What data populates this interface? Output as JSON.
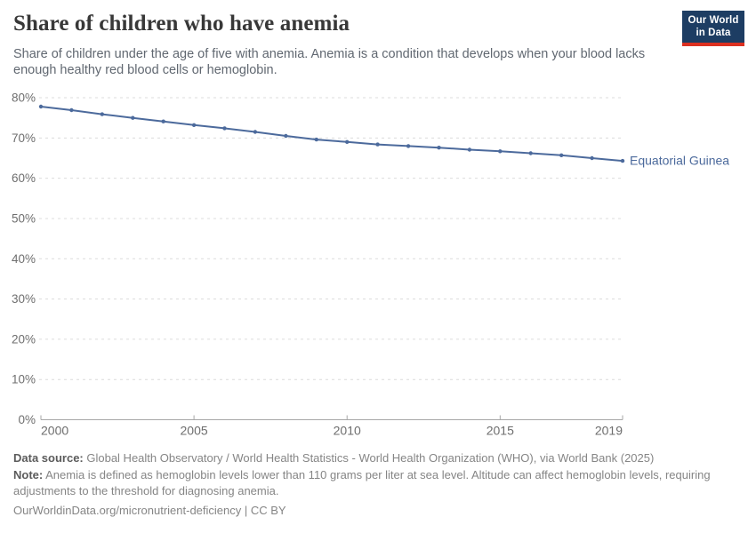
{
  "header": {
    "title": "Share of children who have anemia",
    "subtitle": "Share of children under the age of five with anemia. Anemia is a condition that develops when your blood lacks enough healthy red blood cells or hemoglobin.",
    "logo": {
      "line1": "Our World",
      "line2": "in Data"
    }
  },
  "chart_data": {
    "type": "line",
    "title": "Share of children who have anemia",
    "xlabel": "",
    "ylabel": "",
    "ylim": [
      0,
      80
    ],
    "ytick_step": 10,
    "ytick_suffix": "%",
    "xlim": [
      2000,
      2019
    ],
    "xticks": [
      2000,
      2005,
      2010,
      2015,
      2019
    ],
    "grid": "horizontal-dashed",
    "legend_position": "end-of-line-label",
    "x": [
      2000,
      2001,
      2002,
      2003,
      2004,
      2005,
      2006,
      2007,
      2008,
      2009,
      2010,
      2011,
      2012,
      2013,
      2014,
      2015,
      2016,
      2017,
      2018,
      2019
    ],
    "series": [
      {
        "name": "Equatorial Guinea",
        "color": "#4c6a9c",
        "values": [
          77.8,
          76.9,
          75.9,
          75.0,
          74.1,
          73.2,
          72.4,
          71.5,
          70.5,
          69.6,
          69.0,
          68.4,
          68.0,
          67.6,
          67.1,
          66.7,
          66.2,
          65.7,
          65.0,
          64.3
        ]
      }
    ]
  },
  "footer": {
    "datasource_label": "Data source:",
    "datasource_text": " Global Health Observatory / World Health Statistics - World Health Organization (WHO), via World Bank (2025)",
    "note_label": "Note:",
    "note_text": " Anemia is defined as hemoglobin levels lower than 110 grams per liter at sea level. Altitude can affect hemoglobin levels, requiring adjustments to the threshold for diagnosing anemia.",
    "link_text": "OurWorldinData.org/micronutrient-deficiency | CC BY"
  },
  "colors": {
    "line": "#4c6a9c",
    "grid": "#dcdcdc",
    "axis": "#a7a7a7",
    "tick_label": "#6e6e6e",
    "logo_bg": "#1d3d63",
    "logo_stripe": "#dc3020"
  }
}
